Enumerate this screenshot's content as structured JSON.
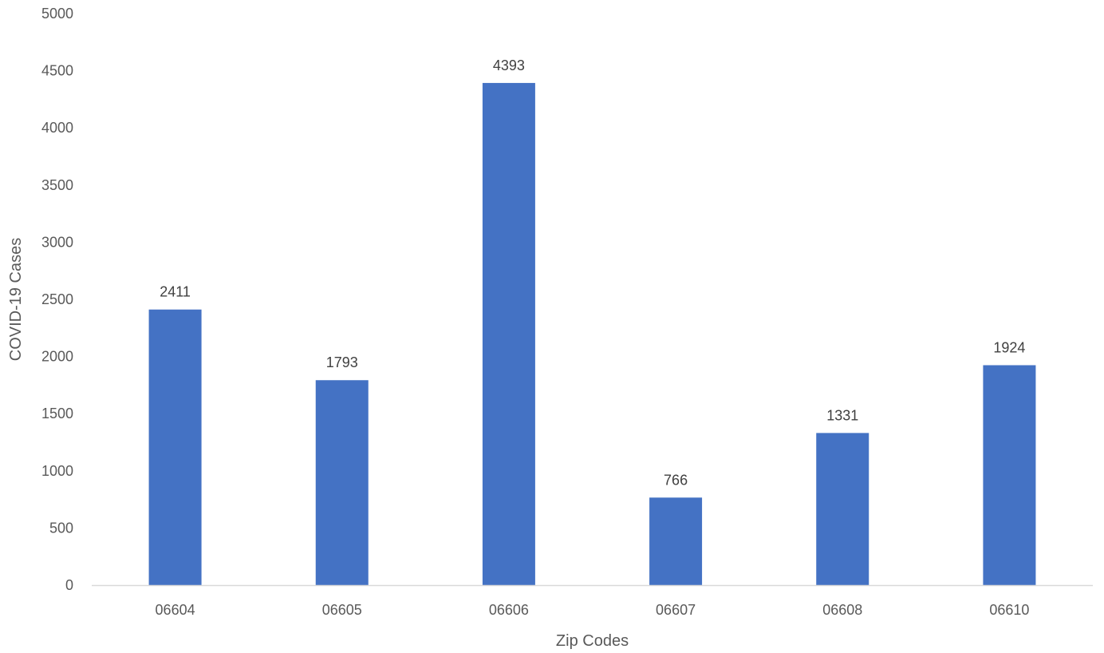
{
  "chart_data": {
    "type": "bar",
    "title": "",
    "xlabel": "Zip Codes",
    "ylabel": "COVID-19 Cases",
    "categories": [
      "06604",
      "06605",
      "06606",
      "06607",
      "06608",
      "06610"
    ],
    "values": [
      2411,
      1793,
      4393,
      766,
      1331,
      1924
    ],
    "data_labels": [
      "2411",
      "1793",
      "4393",
      "766",
      "1331",
      "1924"
    ],
    "ylim": [
      0,
      5000
    ],
    "yticks": [
      0,
      500,
      1000,
      1500,
      2000,
      2500,
      3000,
      3500,
      4000,
      4500,
      5000
    ],
    "ytick_labels": [
      "0",
      "500",
      "1000",
      "1500",
      "2000",
      "2500",
      "3000",
      "3500",
      "4000",
      "4500",
      "5000"
    ],
    "grid": false,
    "legend": "none",
    "bar_color": "#4472C4",
    "axis_color": "#D9D9D9"
  }
}
